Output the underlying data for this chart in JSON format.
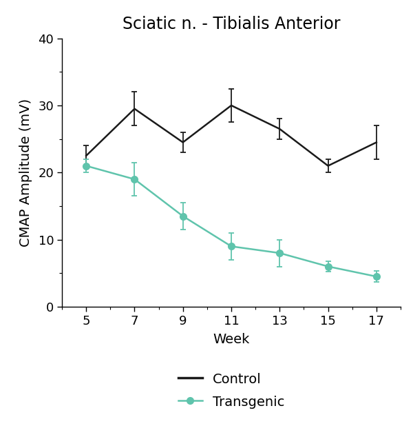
{
  "title": "Sciatic n. - Tibialis Anterior",
  "xlabel": "Week",
  "ylabel": "CMAP Amplitude (mV)",
  "weeks": [
    5,
    7,
    9,
    11,
    13,
    15,
    17
  ],
  "control_mean": [
    22.5,
    29.5,
    24.5,
    30.0,
    26.5,
    21.0,
    24.5
  ],
  "control_err": [
    1.5,
    2.5,
    1.5,
    2.5,
    1.5,
    1.0,
    2.5
  ],
  "transgenic_mean": [
    21.0,
    19.0,
    13.5,
    9.0,
    8.0,
    6.0,
    4.5
  ],
  "transgenic_err": [
    1.0,
    2.5,
    2.0,
    2.0,
    2.0,
    0.8,
    0.8
  ],
  "control_color": "#1a1a1a",
  "transgenic_color": "#5fc4ac",
  "ylim": [
    0,
    40
  ],
  "yticks": [
    0,
    10,
    20,
    30,
    40
  ],
  "xlim": [
    4,
    18
  ],
  "legend_control": "Control",
  "legend_transgenic": "Transgenic",
  "bg_color": "#ffffff",
  "marker_size": 7,
  "line_width": 1.8,
  "capsize": 3,
  "title_fontsize": 17,
  "label_fontsize": 14,
  "tick_fontsize": 13
}
